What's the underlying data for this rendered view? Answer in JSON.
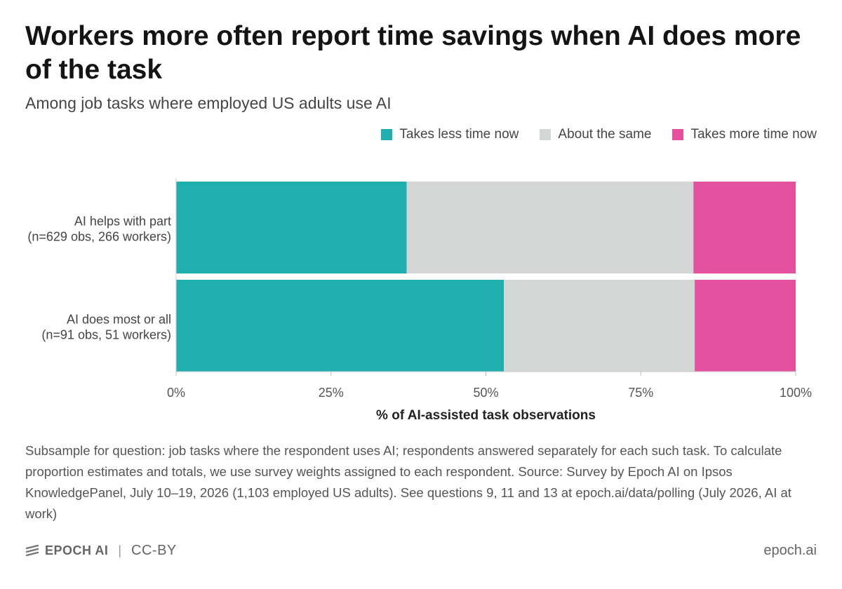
{
  "header": {
    "title": "Workers more often report time savings when AI does more of the task",
    "subtitle": "Among job tasks where employed US adults use AI"
  },
  "colors": {
    "less": "#1fafaf",
    "same": "#d4d5d5",
    "more": "#e4519f"
  },
  "chart_data": {
    "type": "bar",
    "orientation": "horizontal",
    "stacked": true,
    "categories": [
      [
        "AI helps with part",
        "(n=629 obs, 266 workers)"
      ],
      [
        "AI does most or all",
        "(n=91 obs, 51 workers)"
      ]
    ],
    "series": [
      {
        "name": "Takes less time now",
        "values": [
          37.2,
          52.9
        ]
      },
      {
        "name": "About the same",
        "values": [
          46.3,
          30.8
        ]
      },
      {
        "name": "Takes more time now",
        "values": [
          16.5,
          16.3
        ]
      }
    ],
    "xlabel": "% of AI-assisted task observations",
    "xlim": [
      0,
      100
    ],
    "xticks": [
      "0%",
      "25%",
      "50%",
      "75%",
      "100%"
    ],
    "legend_position": "top-right"
  },
  "notes": "Subsample for question: job tasks where the respondent uses AI; respondents answered separately for each such task. To calculate proportion estimates and totals, we use survey weights assigned to each respondent. Source: Survey by Epoch AI on Ipsos KnowledgePanel, July 10–19, 2026 (1,103 employed US adults). See questions 9, 11 and 13 at epoch.ai/data/polling (July 2026, AI at work)",
  "footer": {
    "logo": "EPOCH AI",
    "separator": "|",
    "license": "CC-BY",
    "site": "epoch.ai"
  }
}
